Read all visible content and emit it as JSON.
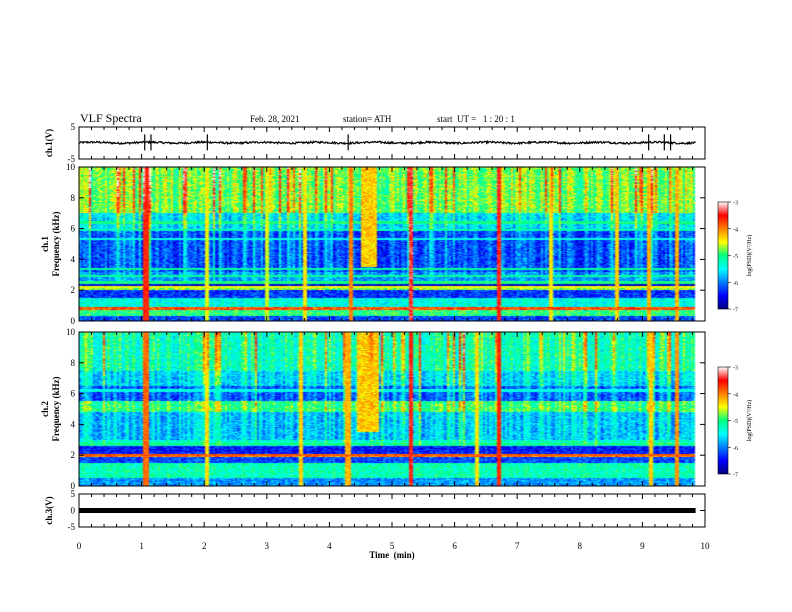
{
  "chart_data": {
    "type": "heatmap",
    "title": "VLF Spectra",
    "date": "Feb. 28, 2021",
    "station": "station= ATH",
    "start_ut": "start  UT =   1 : 20 : 1",
    "xlabel": "Time  (min)",
    "xlim": [
      0,
      10
    ],
    "x_ticks": [
      "0",
      "1",
      "2",
      "3",
      "4",
      "5",
      "6",
      "7",
      "8",
      "9",
      "10"
    ],
    "data_extent_min": 9.85,
    "panels": [
      {
        "id": "ch1_waveform",
        "type": "line",
        "ylabel": "ch.1(V)",
        "ylim": [
          -5,
          5
        ],
        "y_ticks": [
          "5",
          "-5"
        ],
        "baseline": 0.1,
        "noise_amplitude": 0.5,
        "spike_times_min": [
          1.05,
          1.15,
          2.05,
          4.3,
          9.1,
          9.35,
          9.45
        ]
      },
      {
        "id": "ch1_spectrogram",
        "type": "heatmap",
        "ylabel": "ch.1\nFrequency  (kHz)",
        "ylim": [
          0,
          10
        ],
        "y_ticks": [
          "0",
          "2",
          "4",
          "6",
          "8",
          "10"
        ],
        "colorbar": {
          "label": "log(PSD)(V²/Hz)",
          "range": [
            -7,
            -3
          ],
          "ticks": [
            "-3",
            "-4",
            "-5",
            "-6",
            "-7"
          ]
        },
        "band_levels_log_psd": [
          {
            "f": [
              0.0,
              0.3
            ],
            "v": -6.2
          },
          {
            "f": [
              0.3,
              0.7
            ],
            "v": -5.0
          },
          {
            "f": [
              0.7,
              0.9
            ],
            "v": -3.8
          },
          {
            "f": [
              0.9,
              1.5
            ],
            "v": -5.4
          },
          {
            "f": [
              1.5,
              2.0
            ],
            "v": -6.3
          },
          {
            "f": [
              2.0,
              2.2
            ],
            "v": -4.7
          },
          {
            "f": [
              2.2,
              2.5
            ],
            "v": -6.6
          },
          {
            "f": [
              2.5,
              3.2
            ],
            "v": -5.9
          },
          {
            "f": [
              3.2,
              6.0
            ],
            "v": -6.2
          },
          {
            "f": [
              6.0,
              7.0
            ],
            "v": -5.6
          },
          {
            "f": [
              7.0,
              10.0
            ],
            "v": -4.8
          }
        ],
        "spectral_lines": [
          {
            "f": 2.2,
            "v": -4.5
          },
          {
            "f": 2.5,
            "v": -5.0
          },
          {
            "f": 2.9,
            "v": -5.1
          },
          {
            "f": 3.4,
            "v": -5.1
          },
          {
            "f": 5.3,
            "v": -5.4
          },
          {
            "f": 5.9,
            "v": -5.2
          },
          {
            "f": 6.4,
            "v": -5.0
          }
        ],
        "burst": {
          "t": [
            4.5,
            4.75
          ],
          "f": [
            3.5,
            10
          ],
          "v": -4.3
        },
        "impulses": [
          {
            "t": 1.07,
            "v": -3.6
          },
          {
            "t": 2.05,
            "v": -4.5
          },
          {
            "t": 3.0,
            "v": -4.6
          },
          {
            "t": 3.6,
            "v": -4.4
          },
          {
            "t": 4.35,
            "v": -4.0
          },
          {
            "t": 5.3,
            "v": -3.4
          },
          {
            "t": 6.7,
            "v": -3.5
          },
          {
            "t": 7.55,
            "v": -4.4
          },
          {
            "t": 8.6,
            "v": -4.3
          },
          {
            "t": 9.1,
            "v": -4.2
          },
          {
            "t": 9.55,
            "v": -4.2
          }
        ]
      },
      {
        "id": "ch2_spectrogram",
        "type": "heatmap",
        "ylabel": "ch.2\nFrequency  (kHz)",
        "ylim": [
          0,
          10
        ],
        "y_ticks": [
          "0",
          "2",
          "4",
          "6",
          "8",
          "10"
        ],
        "colorbar": {
          "label": "log(PSD)(V²/Hz)",
          "range": [
            -7,
            -3
          ],
          "ticks": [
            "-3",
            "-4",
            "-5",
            "-6",
            "-7"
          ]
        },
        "band_levels_log_psd": [
          {
            "f": [
              0.0,
              0.5
            ],
            "v": -5.9
          },
          {
            "f": [
              0.5,
              1.5
            ],
            "v": -5.2
          },
          {
            "f": [
              1.5,
              1.9
            ],
            "v": -6.2
          },
          {
            "f": [
              1.9,
              2.1
            ],
            "v": -4.0
          },
          {
            "f": [
              2.1,
              2.6
            ],
            "v": -6.4
          },
          {
            "f": [
              2.6,
              3.0
            ],
            "v": -5.3
          },
          {
            "f": [
              3.0,
              4.8
            ],
            "v": -5.7
          },
          {
            "f": [
              4.8,
              5.5
            ],
            "v": -5.0
          },
          {
            "f": [
              5.5,
              6.5
            ],
            "v": -6.1
          },
          {
            "f": [
              6.5,
              7.5
            ],
            "v": -5.6
          },
          {
            "f": [
              7.5,
              10.0
            ],
            "v": -5.2
          }
        ],
        "spectral_lines": [
          {
            "f": 2.0,
            "v": -3.9
          },
          {
            "f": 2.7,
            "v": -5.0
          },
          {
            "f": 5.0,
            "v": -5.0
          },
          {
            "f": 6.2,
            "v": -5.4
          }
        ],
        "burst": {
          "t": [
            4.45,
            4.8
          ],
          "f": [
            3.5,
            10
          ],
          "v": -4.3
        },
        "impulses": [
          {
            "t": 1.07,
            "v": -3.9
          },
          {
            "t": 2.05,
            "v": -4.4
          },
          {
            "t": 3.55,
            "v": -4.3
          },
          {
            "t": 4.3,
            "v": -4.2
          },
          {
            "t": 5.3,
            "v": -3.5
          },
          {
            "t": 6.35,
            "v": -4.4
          },
          {
            "t": 6.7,
            "v": -3.6
          },
          {
            "t": 9.15,
            "v": -4.3
          },
          {
            "t": 9.55,
            "v": -4.1
          }
        ]
      },
      {
        "id": "ch3_waveform",
        "type": "line",
        "ylabel": "ch.3(V)",
        "ylim": [
          -5,
          5
        ],
        "y_ticks": [
          "5",
          "0",
          "-5"
        ],
        "baseline": 0.0,
        "noise_amplitude": 0.0
      }
    ]
  }
}
